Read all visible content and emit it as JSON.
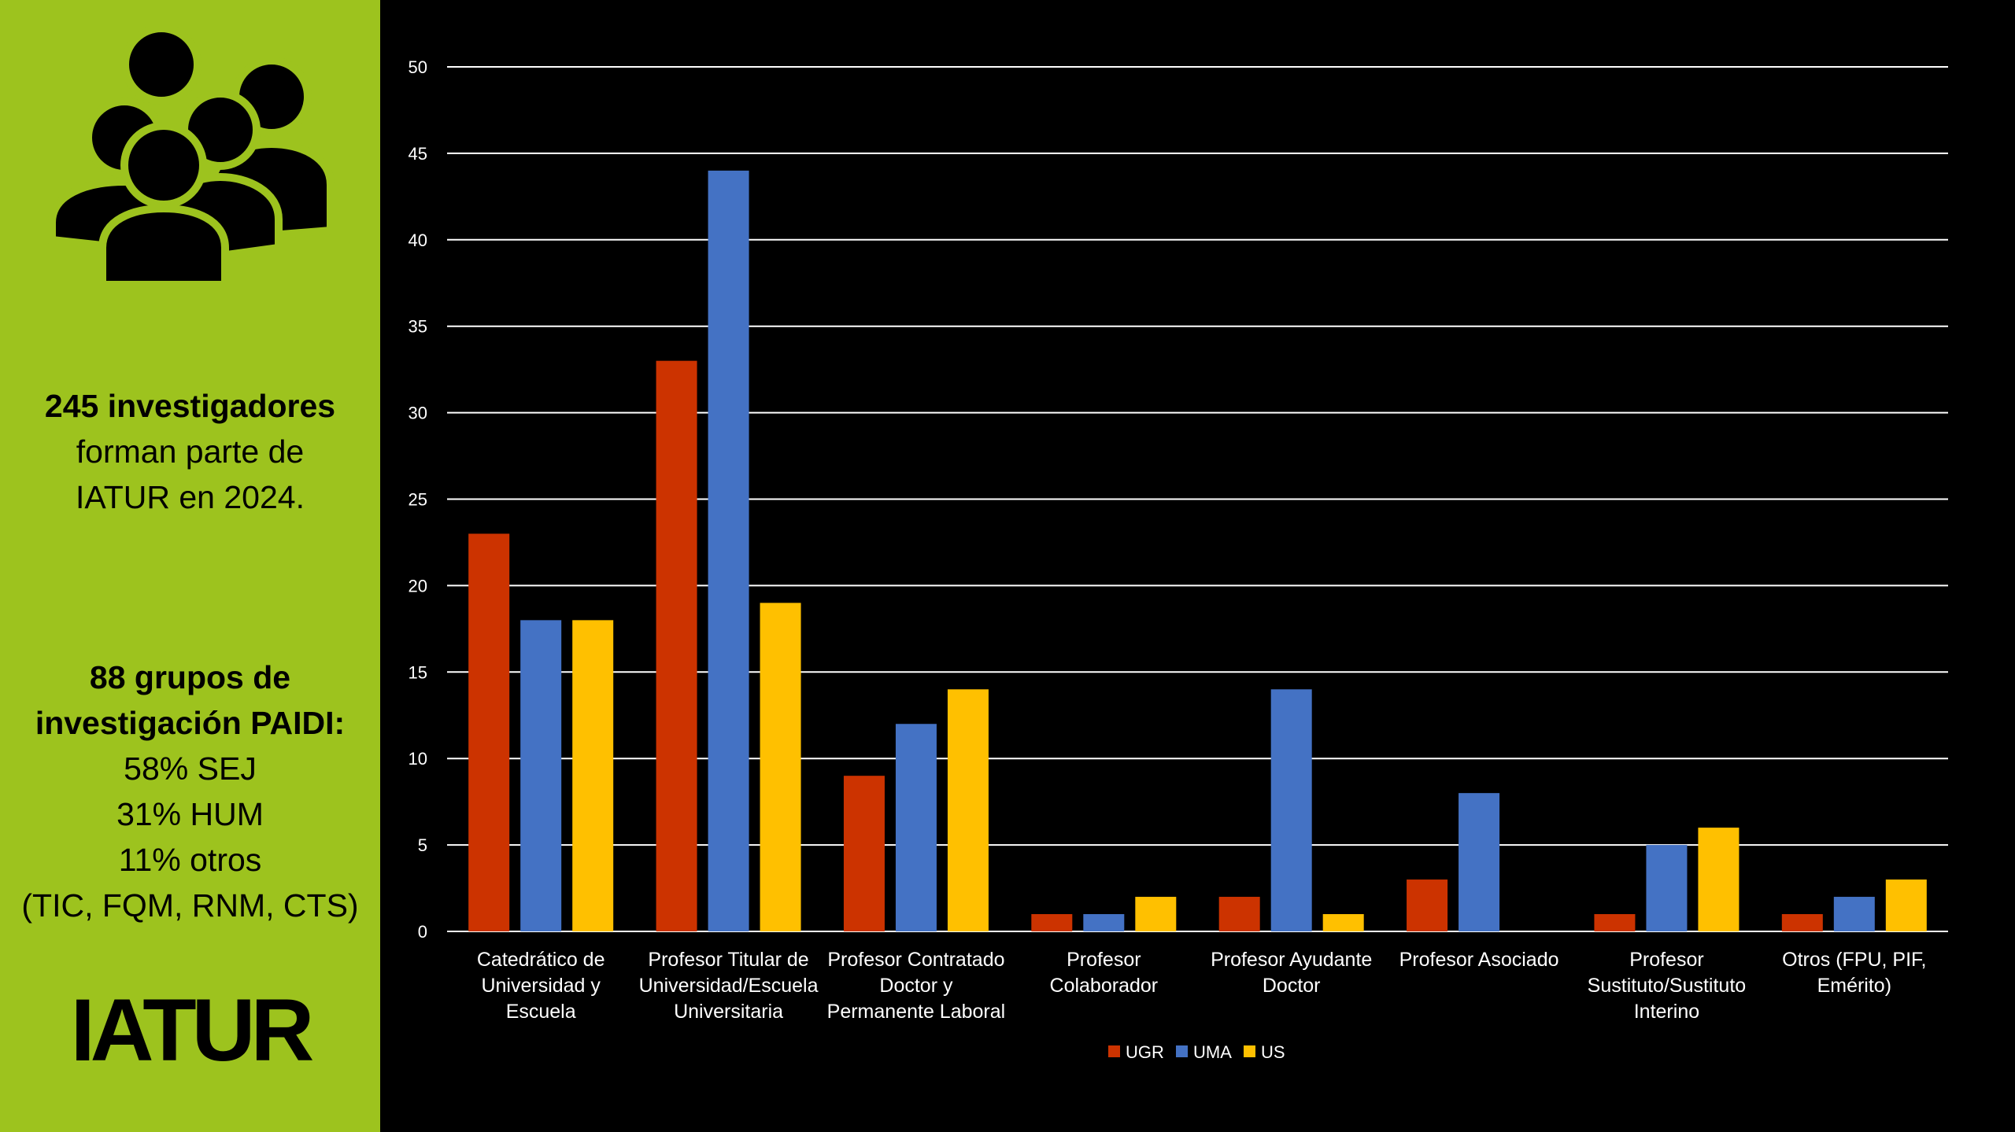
{
  "sidebar": {
    "researchers_line1": "245 investigadores",
    "researchers_line2": "forman parte de",
    "researchers_line3": "IATUR en 2024.",
    "groups_line1": "88 grupos de",
    "groups_line2": "investigación PAIDI:",
    "groups_line3": "58% SEJ",
    "groups_line4": "31% HUM",
    "groups_line5": "11% otros",
    "groups_line6": "(TIC, FQM, RNM, CTS)",
    "logo": "IATUR",
    "icon": "people-group-icon",
    "bg_color": "#9dc31e"
  },
  "chart_data": {
    "type": "bar",
    "title": "",
    "xlabel": "",
    "ylabel": "",
    "ylim": [
      0,
      50
    ],
    "yticks": [
      0,
      5,
      10,
      15,
      20,
      25,
      30,
      35,
      40,
      45,
      50
    ],
    "grid": true,
    "legend_position": "bottom",
    "categories": [
      [
        "Catedrático de",
        "Universidad y",
        "Escuela"
      ],
      [
        "Profesor Titular de",
        "Universidad/Escuela",
        "Universitaria"
      ],
      [
        "Profesor Contratado",
        "Doctor y",
        "Permanente Laboral"
      ],
      [
        "Profesor",
        "Colaborador"
      ],
      [
        "Profesor Ayudante",
        "Doctor"
      ],
      [
        "Profesor Asociado"
      ],
      [
        "Profesor",
        "Sustituto/Sustituto",
        "Interino"
      ],
      [
        "Otros (FPU, PIF,",
        "Emérito)"
      ]
    ],
    "series": [
      {
        "name": "UGR",
        "color": "#cc3300",
        "values": [
          23,
          33,
          9,
          1,
          2,
          3,
          1,
          1
        ]
      },
      {
        "name": "UMA",
        "color": "#4472c4",
        "values": [
          18,
          44,
          12,
          1,
          14,
          8,
          5,
          2
        ]
      },
      {
        "name": "US",
        "color": "#ffc000",
        "values": [
          18,
          19,
          14,
          2,
          1,
          0,
          6,
          3
        ]
      }
    ]
  }
}
